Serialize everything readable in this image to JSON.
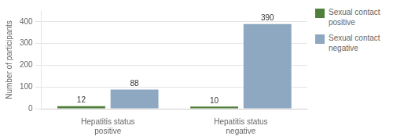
{
  "chart_data": {
    "type": "bar",
    "categories": [
      "Hepatitis status\npositive",
      "Hepatitis status\nnegative"
    ],
    "series": [
      {
        "name": "Sexual contact\npositive",
        "color": "#4f7f3a",
        "values": [
          12,
          10
        ]
      },
      {
        "name": "Sexual contact\nnegative",
        "color": "#8da8c0",
        "values": [
          88,
          390
        ]
      }
    ],
    "ylim": [
      0,
      450
    ],
    "yticks": [
      0,
      100,
      200,
      300,
      400
    ],
    "ylabel": "Number of participants",
    "grid": true,
    "legend": "right",
    "data_labels": true
  }
}
